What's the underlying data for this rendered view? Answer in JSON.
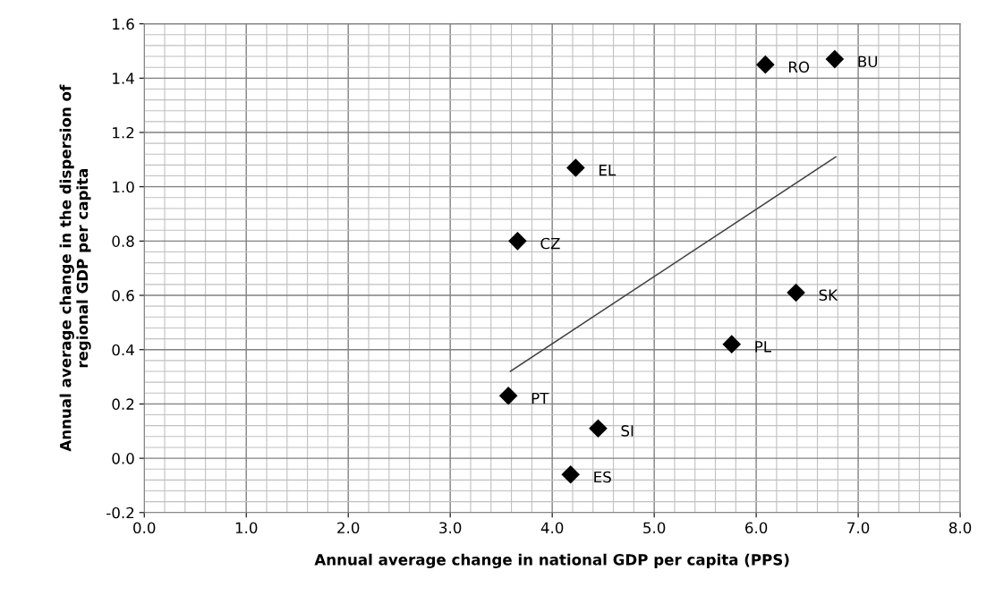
{
  "chart_data": {
    "type": "scatter",
    "xlabel": "Annual average change in national GDP per capita (PPS)",
    "ylabel": "Annual average change in the dispersion of\nregional GDP per capita",
    "series": [
      {
        "color": "#000000",
        "marker": "diamond",
        "x": [
          6.09,
          6.77,
          4.23,
          3.66,
          6.39,
          5.76,
          3.57,
          4.45,
          4.18
        ],
        "values": [
          1.45,
          1.47,
          1.07,
          0.8,
          0.61,
          0.42,
          0.23,
          0.11,
          -0.06
        ]
      },
      {
        "type": "line",
        "color": "#404040",
        "marker": "none",
        "x": [
          3.59,
          6.78
        ],
        "values": [
          0.32,
          1.11
        ]
      }
    ],
    "annotations": [
      {
        "text": "RO",
        "x": 6.09,
        "y": 1.45
      },
      {
        "text": "BU",
        "x": 6.77,
        "y": 1.47
      },
      {
        "text": "EL",
        "x": 4.23,
        "y": 1.07
      },
      {
        "text": "CZ",
        "x": 3.66,
        "y": 0.8
      },
      {
        "text": "SK",
        "x": 6.39,
        "y": 0.61
      },
      {
        "text": "PL",
        "x": 5.76,
        "y": 0.42
      },
      {
        "text": "PT",
        "x": 3.57,
        "y": 0.23
      },
      {
        "text": "SI",
        "x": 4.45,
        "y": 0.11
      },
      {
        "text": "ES",
        "x": 4.18,
        "y": -0.06
      }
    ],
    "xlim": [
      0,
      8
    ],
    "xticks": [
      {
        "value": 0,
        "label": "0.0"
      },
      {
        "value": 1,
        "label": "1.0"
      },
      {
        "value": 2,
        "label": "2.0"
      },
      {
        "value": 3,
        "label": "3.0"
      },
      {
        "value": 4,
        "label": "4.0"
      },
      {
        "value": 5,
        "label": "5.0"
      },
      {
        "value": 6,
        "label": "6.0"
      },
      {
        "value": 7,
        "label": "7.0"
      },
      {
        "value": 8,
        "label": "8.0"
      }
    ],
    "ylim": [
      -0.2,
      1.6
    ],
    "yticks": [
      {
        "value": -0.2,
        "label": "-0.2"
      },
      {
        "value": 0,
        "label": "0.0"
      },
      0.2,
      0.4,
      0.6,
      0.8,
      {
        "value": 1,
        "label": "1.0"
      },
      1.2,
      1.4,
      1.6
    ],
    "grid": true
  }
}
